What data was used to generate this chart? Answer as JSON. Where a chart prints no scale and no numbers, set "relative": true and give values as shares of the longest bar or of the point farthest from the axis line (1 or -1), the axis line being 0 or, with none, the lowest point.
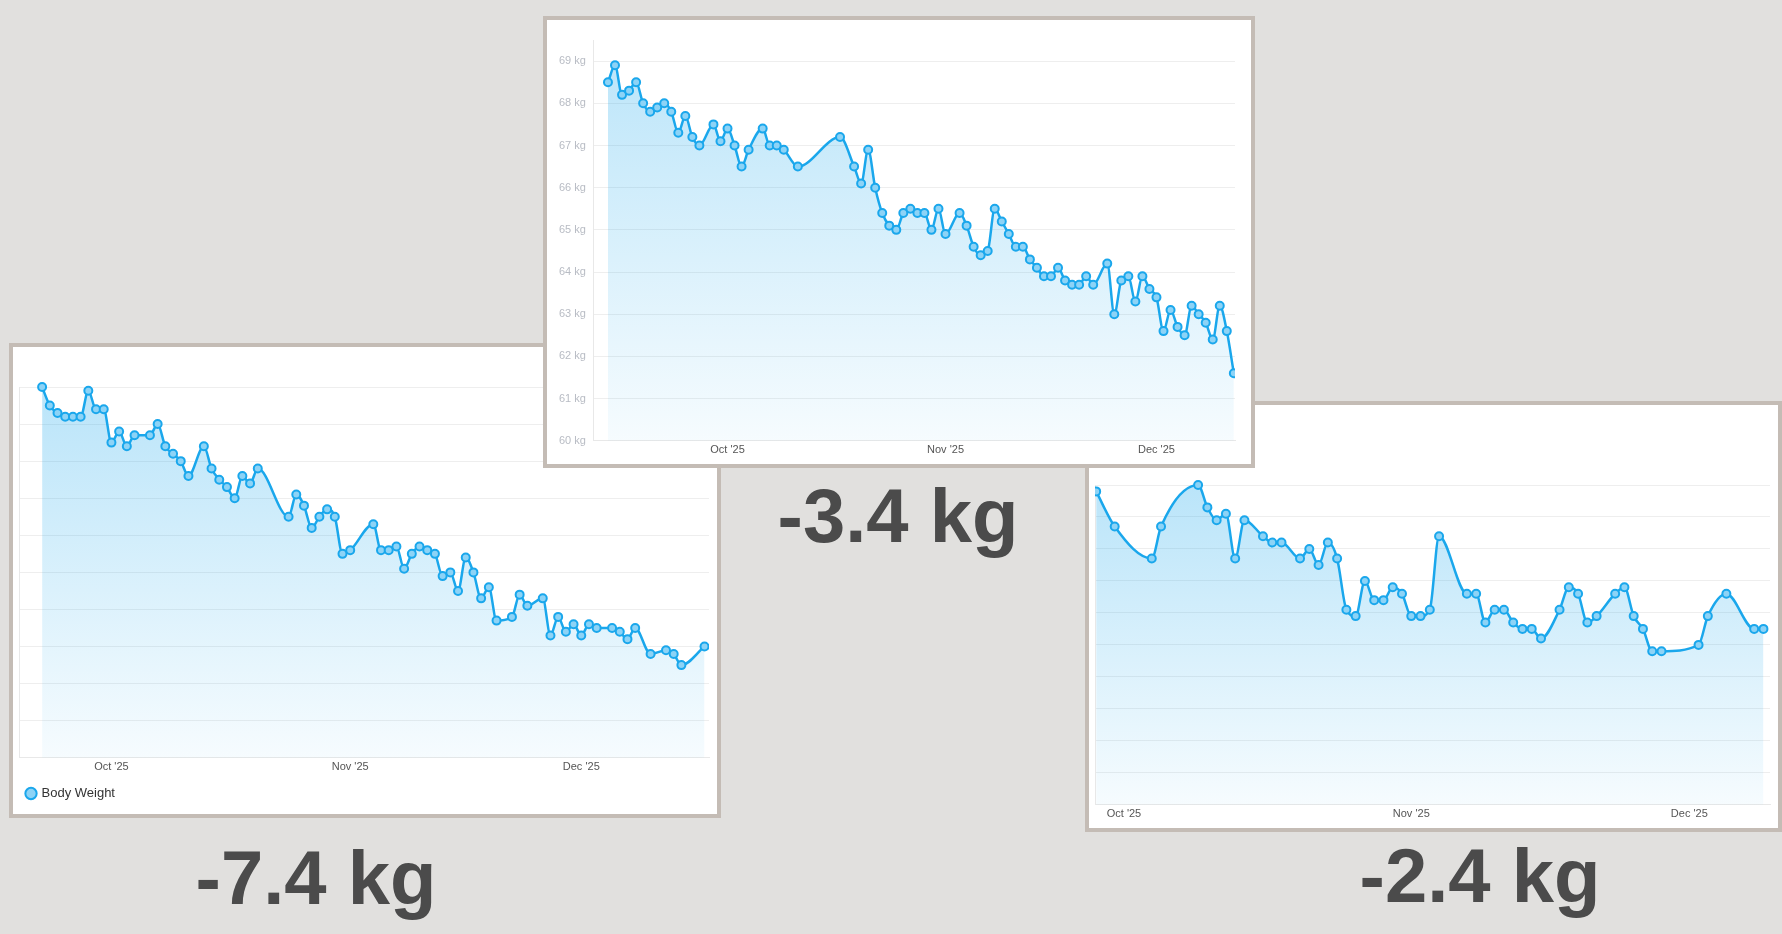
{
  "chart_data": [
    {
      "type": "area",
      "annotations": [
        "-3.4 kg"
      ],
      "grid": "y",
      "marker": "circle",
      "xlim": [
        "2025-09-12",
        "2025-12-12T04:00"
      ],
      "xticks": [
        {
          "value": "2025-10-01",
          "label": "Oct '25"
        },
        {
          "value": "2025-11-01",
          "label": "Nov '25"
        },
        {
          "value": "2025-12-01",
          "label": "Dec '25"
        }
      ],
      "ylim": [
        60,
        69.5
      ],
      "yticks": [
        {
          "value": 60,
          "label": "60 kg"
        },
        {
          "value": 61,
          "label": "61 kg"
        },
        {
          "value": 62,
          "label": "62 kg"
        },
        {
          "value": 63,
          "label": "63 kg"
        },
        {
          "value": 64,
          "label": "64 kg"
        },
        {
          "value": 65,
          "label": "65 kg"
        },
        {
          "value": 66,
          "label": "66 kg"
        },
        {
          "value": 67,
          "label": "67 kg"
        },
        {
          "value": 68,
          "label": "68 kg"
        },
        {
          "value": 69,
          "label": "69 kg"
        }
      ],
      "x": [
        "2025-09-14",
        "2025-09-15",
        "2025-09-16",
        "2025-09-17",
        "2025-09-18",
        "2025-09-19",
        "2025-09-20",
        "2025-09-21",
        "2025-09-22",
        "2025-09-23",
        "2025-09-24",
        "2025-09-25",
        "2025-09-26",
        "2025-09-27",
        "2025-09-29",
        "2025-09-30",
        "2025-10-01",
        "2025-10-02",
        "2025-10-03",
        "2025-10-04",
        "2025-10-06",
        "2025-10-07",
        "2025-10-08",
        "2025-10-09",
        "2025-10-11",
        "2025-10-17",
        "2025-10-19",
        "2025-10-20",
        "2025-10-21",
        "2025-10-22",
        "2025-10-23",
        "2025-10-24",
        "2025-10-25",
        "2025-10-26",
        "2025-10-27",
        "2025-10-28",
        "2025-10-29",
        "2025-10-30",
        "2025-10-31",
        "2025-11-01",
        "2025-11-03",
        "2025-11-04",
        "2025-11-05",
        "2025-11-06",
        "2025-11-07",
        "2025-11-08",
        "2025-11-09",
        "2025-11-10",
        "2025-11-11",
        "2025-11-12",
        "2025-11-13",
        "2025-11-14",
        "2025-11-15",
        "2025-11-16",
        "2025-11-17",
        "2025-11-18",
        "2025-11-19",
        "2025-11-20",
        "2025-11-21",
        "2025-11-22",
        "2025-11-24",
        "2025-11-25",
        "2025-11-26",
        "2025-11-27",
        "2025-11-28",
        "2025-11-29",
        "2025-11-30",
        "2025-12-01",
        "2025-12-02",
        "2025-12-03",
        "2025-12-04",
        "2025-12-05",
        "2025-12-06",
        "2025-12-07",
        "2025-12-08",
        "2025-12-09",
        "2025-12-10",
        "2025-12-11",
        "2025-12-12"
      ],
      "series": [
        {
          "color": "#1aa7ec",
          "values": [
            68.5,
            68.9,
            68.2,
            68.3,
            68.5,
            68.0,
            67.8,
            67.9,
            68.0,
            67.8,
            67.3,
            67.7,
            67.2,
            67.0,
            67.5,
            67.1,
            67.4,
            67.0,
            66.5,
            66.9,
            67.4,
            67.0,
            67.0,
            66.9,
            66.5,
            67.2,
            66.5,
            66.1,
            66.9,
            66.0,
            65.4,
            65.1,
            65.0,
            65.4,
            65.5,
            65.4,
            65.4,
            65.0,
            65.5,
            64.9,
            65.4,
            65.1,
            64.6,
            64.4,
            64.5,
            65.5,
            65.2,
            64.9,
            64.6,
            64.6,
            64.3,
            64.1,
            63.9,
            63.9,
            64.1,
            63.8,
            63.7,
            63.7,
            63.9,
            63.7,
            64.2,
            63.0,
            63.8,
            63.9,
            63.3,
            63.9,
            63.6,
            63.4,
            62.6,
            63.1,
            62.7,
            62.5,
            63.2,
            63.0,
            62.8,
            62.4,
            63.2,
            62.6,
            61.6
          ]
        }
      ]
    },
    {
      "type": "area",
      "annotations": [
        "-7.4 kg"
      ],
      "grid": "y",
      "marker": "circle",
      "relative": true,
      "tick_labels": "x",
      "legend": "bottom left",
      "xlim": [
        "2025-09-19",
        "2025-12-17T14:00"
      ],
      "xticks": [
        {
          "value": "2025-10-01",
          "label": "Oct '25"
        },
        {
          "value": "2025-11-01",
          "label": "Nov '25"
        },
        {
          "value": "2025-12-01",
          "label": "Dec '25"
        }
      ],
      "x": [
        "2025-09-22",
        "2025-09-23",
        "2025-09-24",
        "2025-09-25",
        "2025-09-26",
        "2025-09-27",
        "2025-09-28",
        "2025-09-29",
        "2025-09-30",
        "2025-10-01",
        "2025-10-02",
        "2025-10-03",
        "2025-10-04",
        "2025-10-06",
        "2025-10-07",
        "2025-10-08",
        "2025-10-09",
        "2025-10-10",
        "2025-10-11",
        "2025-10-13",
        "2025-10-14",
        "2025-10-15",
        "2025-10-16",
        "2025-10-17",
        "2025-10-18",
        "2025-10-19",
        "2025-10-20",
        "2025-10-24",
        "2025-10-25",
        "2025-10-26",
        "2025-10-27",
        "2025-10-28",
        "2025-10-29",
        "2025-10-30",
        "2025-10-31",
        "2025-11-01",
        "2025-11-04",
        "2025-11-05",
        "2025-11-06",
        "2025-11-07",
        "2025-11-08",
        "2025-11-09",
        "2025-11-10",
        "2025-11-11",
        "2025-11-12",
        "2025-11-13",
        "2025-11-14",
        "2025-11-15",
        "2025-11-16",
        "2025-11-17",
        "2025-11-18",
        "2025-11-19",
        "2025-11-20",
        "2025-11-22",
        "2025-11-23",
        "2025-11-24",
        "2025-11-26",
        "2025-11-27",
        "2025-11-28",
        "2025-11-29",
        "2025-11-30",
        "2025-12-01",
        "2025-12-02",
        "2025-12-03",
        "2025-12-05",
        "2025-12-06",
        "2025-12-07",
        "2025-12-08",
        "2025-12-10",
        "2025-12-12",
        "2025-12-13",
        "2025-12-14",
        "2025-12-17"
      ],
      "series": [
        {
          "name": "Body Weight",
          "color": "#1aa7ec",
          "values": [
            1.0,
            0.95,
            0.93,
            0.92,
            0.92,
            0.92,
            0.99,
            0.94,
            0.94,
            0.85,
            0.88,
            0.84,
            0.87,
            0.87,
            0.9,
            0.84,
            0.82,
            0.8,
            0.76,
            0.84,
            0.78,
            0.75,
            0.73,
            0.7,
            0.76,
            0.74,
            0.78,
            0.65,
            0.71,
            0.68,
            0.62,
            0.65,
            0.67,
            0.65,
            0.55,
            0.56,
            0.63,
            0.56,
            0.56,
            0.57,
            0.51,
            0.55,
            0.57,
            0.56,
            0.55,
            0.49,
            0.5,
            0.45,
            0.54,
            0.5,
            0.43,
            0.46,
            0.37,
            0.38,
            0.44,
            0.41,
            0.43,
            0.33,
            0.38,
            0.34,
            0.36,
            0.33,
            0.36,
            0.35,
            0.35,
            0.34,
            0.32,
            0.35,
            0.28,
            0.29,
            0.28,
            0.25,
            0.3
          ]
        }
      ]
    },
    {
      "type": "area",
      "annotations": [
        "-2.4 kg"
      ],
      "grid": "y",
      "marker": "circle",
      "relative": true,
      "tick_labels": "x",
      "xlim": [
        "2025-09-27T21:00",
        "2025-12-09T17:00"
      ],
      "xticks": [
        {
          "value": "2025-10-01",
          "label": "Oct '25"
        },
        {
          "value": "2025-11-01",
          "label": "Nov '25"
        },
        {
          "value": "2025-12-01",
          "label": "Dec '25"
        }
      ],
      "x": [
        "2025-09-28",
        "2025-09-30",
        "2025-10-04",
        "2025-10-05",
        "2025-10-09",
        "2025-10-10",
        "2025-10-11",
        "2025-10-12",
        "2025-10-13",
        "2025-10-14",
        "2025-10-16",
        "2025-10-17",
        "2025-10-18",
        "2025-10-20",
        "2025-10-21",
        "2025-10-22",
        "2025-10-23",
        "2025-10-24",
        "2025-10-25",
        "2025-10-26",
        "2025-10-27",
        "2025-10-28",
        "2025-10-29",
        "2025-10-30",
        "2025-10-31",
        "2025-11-01",
        "2025-11-02",
        "2025-11-03",
        "2025-11-04",
        "2025-11-07",
        "2025-11-08",
        "2025-11-09",
        "2025-11-10",
        "2025-11-11",
        "2025-11-12",
        "2025-11-13",
        "2025-11-14",
        "2025-11-15",
        "2025-11-17",
        "2025-11-18",
        "2025-11-19",
        "2025-11-20",
        "2025-11-21",
        "2025-11-23",
        "2025-11-24",
        "2025-11-25",
        "2025-11-26",
        "2025-11-27",
        "2025-11-28",
        "2025-12-02",
        "2025-12-03",
        "2025-12-05",
        "2025-12-08",
        "2025-12-09"
      ],
      "series": [
        {
          "color": "#1aa7ec",
          "values": [
            0.98,
            0.87,
            0.77,
            0.87,
            1.0,
            0.93,
            0.89,
            0.91,
            0.77,
            0.89,
            0.84,
            0.82,
            0.82,
            0.77,
            0.8,
            0.75,
            0.82,
            0.77,
            0.61,
            0.59,
            0.7,
            0.64,
            0.64,
            0.68,
            0.66,
            0.59,
            0.59,
            0.61,
            0.84,
            0.66,
            0.66,
            0.57,
            0.61,
            0.61,
            0.57,
            0.55,
            0.55,
            0.52,
            0.61,
            0.68,
            0.66,
            0.57,
            0.59,
            0.66,
            0.68,
            0.59,
            0.55,
            0.48,
            0.48,
            0.5,
            0.59,
            0.66,
            0.55,
            0.55
          ]
        }
      ]
    }
  ]
}
